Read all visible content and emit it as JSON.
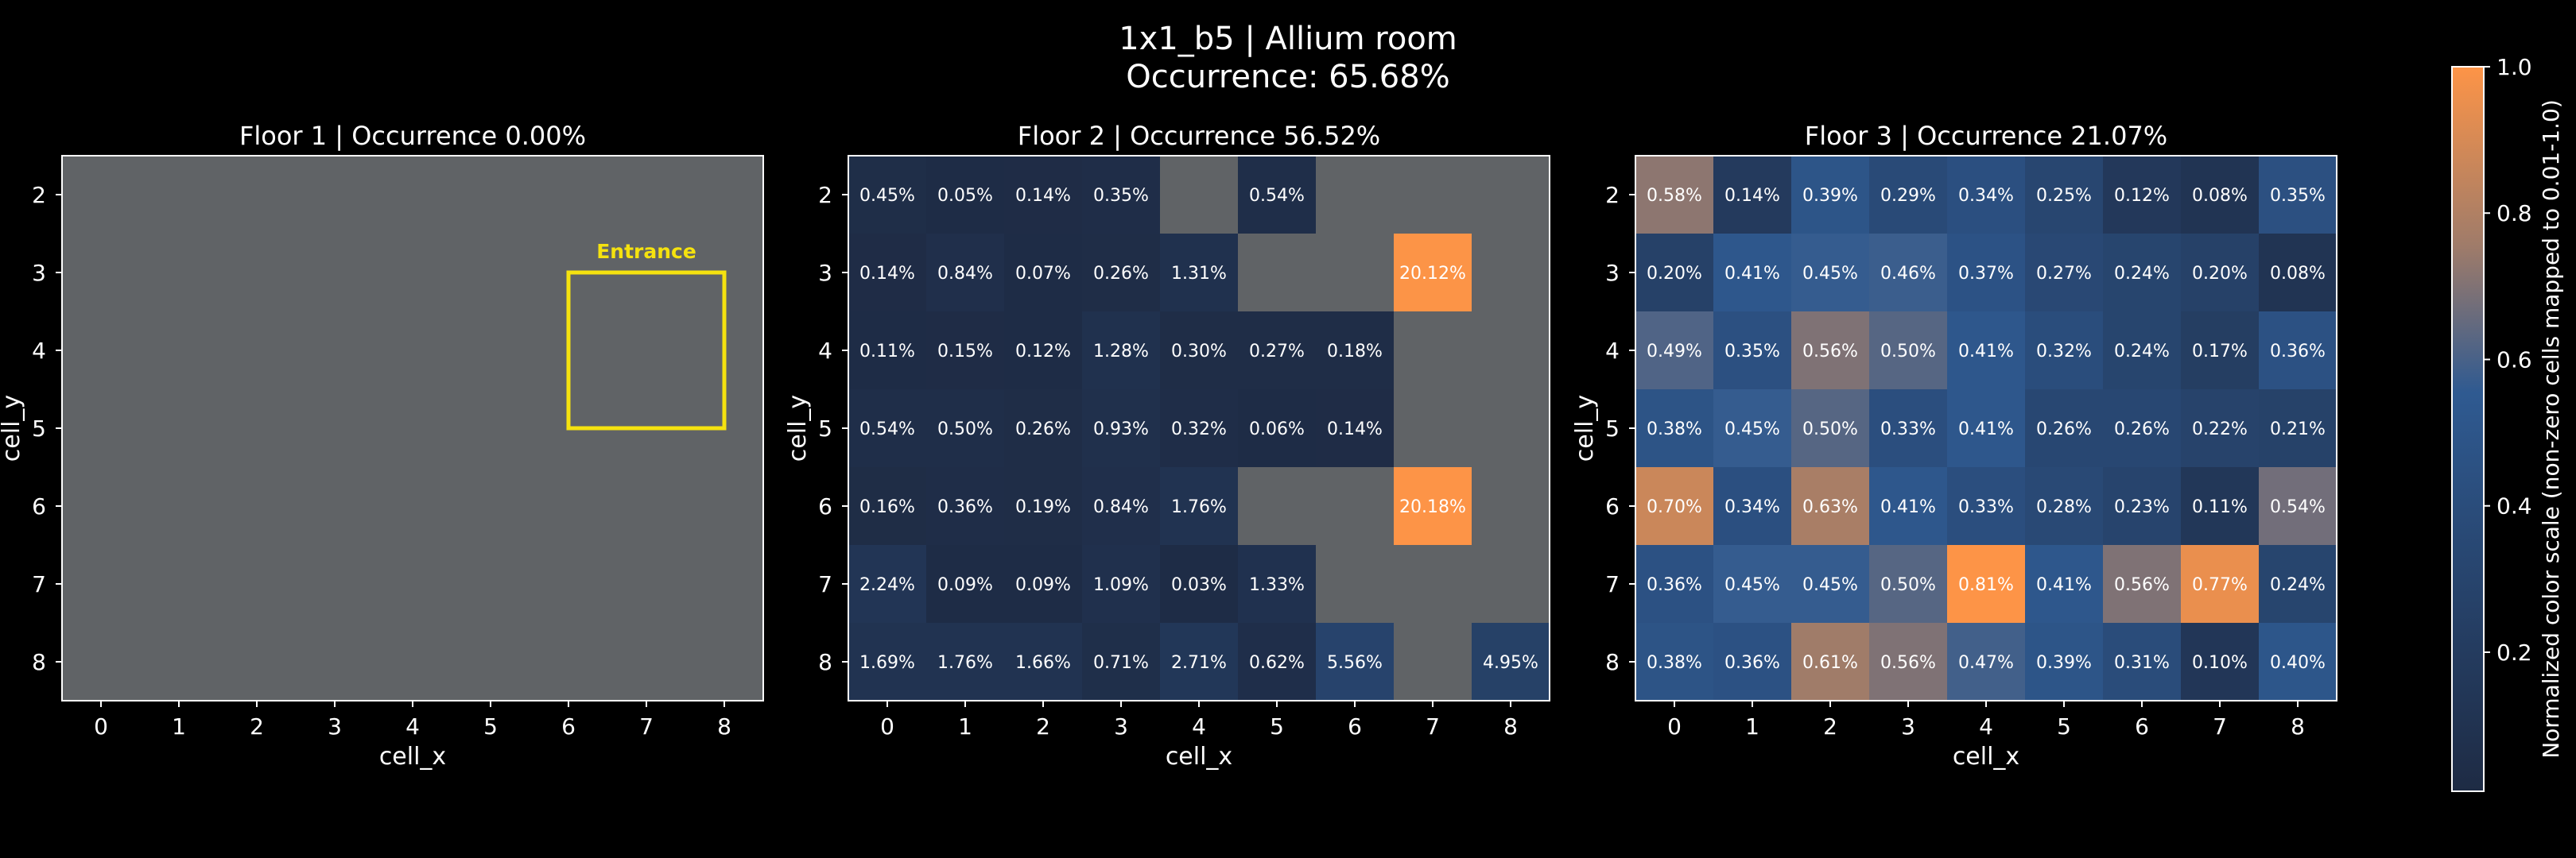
{
  "title": "1x1_b5 | Allium room",
  "subtitle": "Occurrence: 65.68%",
  "entrance_label": "Entrance",
  "colors": {
    "background": "#000000",
    "empty_cell": "#606366",
    "frame": "#ffffff",
    "text": "#ffffff",
    "entrance": "#f5e20f",
    "scale_low": "#1e2b44",
    "scale_mid": "#2f5a91",
    "scale_high": "#fd9447"
  },
  "colorbar": {
    "label": "Normalized color scale (non-zero cells mapped to 0.01-1.0)",
    "range": [
      0.01,
      1.0
    ],
    "ticks": [
      "0.2",
      "0.4",
      "0.6",
      "0.8",
      "1.0"
    ],
    "tick_values": [
      0.2,
      0.4,
      0.6,
      0.8,
      1.0
    ]
  },
  "chart_data": [
    {
      "type": "heatmap",
      "title": "Floor 1 | Occurrence 0.00%",
      "xlabel": "cell_x",
      "ylabel": "cell_y",
      "x_ticks": [
        "0",
        "1",
        "2",
        "3",
        "4",
        "5",
        "6",
        "7",
        "8"
      ],
      "y_ticks": [
        "2",
        "3",
        "4",
        "5",
        "6",
        "7",
        "8"
      ],
      "entrance": {
        "x_range": [
          7,
          8
        ],
        "y_range": [
          4,
          5
        ]
      },
      "cells": []
    },
    {
      "type": "heatmap",
      "title": "Floor 2 | Occurrence 56.52%",
      "xlabel": "cell_x",
      "ylabel": "cell_y",
      "x_ticks": [
        "0",
        "1",
        "2",
        "3",
        "4",
        "5",
        "6",
        "7",
        "8"
      ],
      "y_ticks": [
        "2",
        "3",
        "4",
        "5",
        "6",
        "7",
        "8"
      ],
      "cells": [
        {
          "x": 0,
          "y": 2,
          "label": "0.45%",
          "v": 0.45
        },
        {
          "x": 1,
          "y": 2,
          "label": "0.05%",
          "v": 0.05
        },
        {
          "x": 2,
          "y": 2,
          "label": "0.14%",
          "v": 0.14
        },
        {
          "x": 3,
          "y": 2,
          "label": "0.35%",
          "v": 0.35
        },
        {
          "x": 5,
          "y": 2,
          "label": "0.54%",
          "v": 0.54
        },
        {
          "x": 0,
          "y": 3,
          "label": "0.14%",
          "v": 0.14
        },
        {
          "x": 1,
          "y": 3,
          "label": "0.84%",
          "v": 0.84
        },
        {
          "x": 2,
          "y": 3,
          "label": "0.07%",
          "v": 0.07
        },
        {
          "x": 3,
          "y": 3,
          "label": "0.26%",
          "v": 0.26
        },
        {
          "x": 4,
          "y": 3,
          "label": "1.31%",
          "v": 1.31
        },
        {
          "x": 7,
          "y": 3,
          "label": "20.12%",
          "v": 20.12
        },
        {
          "x": 0,
          "y": 4,
          "label": "0.11%",
          "v": 0.11
        },
        {
          "x": 1,
          "y": 4,
          "label": "0.15%",
          "v": 0.15
        },
        {
          "x": 2,
          "y": 4,
          "label": "0.12%",
          "v": 0.12
        },
        {
          "x": 3,
          "y": 4,
          "label": "1.28%",
          "v": 1.28
        },
        {
          "x": 4,
          "y": 4,
          "label": "0.30%",
          "v": 0.3
        },
        {
          "x": 5,
          "y": 4,
          "label": "0.27%",
          "v": 0.27
        },
        {
          "x": 6,
          "y": 4,
          "label": "0.18%",
          "v": 0.18
        },
        {
          "x": 0,
          "y": 5,
          "label": "0.54%",
          "v": 0.54
        },
        {
          "x": 1,
          "y": 5,
          "label": "0.50%",
          "v": 0.5
        },
        {
          "x": 2,
          "y": 5,
          "label": "0.26%",
          "v": 0.26
        },
        {
          "x": 3,
          "y": 5,
          "label": "0.93%",
          "v": 0.93
        },
        {
          "x": 4,
          "y": 5,
          "label": "0.32%",
          "v": 0.32
        },
        {
          "x": 5,
          "y": 5,
          "label": "0.06%",
          "v": 0.06
        },
        {
          "x": 6,
          "y": 5,
          "label": "0.14%",
          "v": 0.14
        },
        {
          "x": 0,
          "y": 6,
          "label": "0.16%",
          "v": 0.16
        },
        {
          "x": 1,
          "y": 6,
          "label": "0.36%",
          "v": 0.36
        },
        {
          "x": 2,
          "y": 6,
          "label": "0.19%",
          "v": 0.19
        },
        {
          "x": 3,
          "y": 6,
          "label": "0.84%",
          "v": 0.84
        },
        {
          "x": 4,
          "y": 6,
          "label": "1.76%",
          "v": 1.76
        },
        {
          "x": 7,
          "y": 6,
          "label": "20.18%",
          "v": 20.18
        },
        {
          "x": 0,
          "y": 7,
          "label": "2.24%",
          "v": 2.24
        },
        {
          "x": 1,
          "y": 7,
          "label": "0.09%",
          "v": 0.09
        },
        {
          "x": 2,
          "y": 7,
          "label": "0.09%",
          "v": 0.09
        },
        {
          "x": 3,
          "y": 7,
          "label": "1.09%",
          "v": 1.09
        },
        {
          "x": 4,
          "y": 7,
          "label": "0.03%",
          "v": 0.03
        },
        {
          "x": 5,
          "y": 7,
          "label": "1.33%",
          "v": 1.33
        },
        {
          "x": 0,
          "y": 8,
          "label": "1.69%",
          "v": 1.69
        },
        {
          "x": 1,
          "y": 8,
          "label": "1.76%",
          "v": 1.76
        },
        {
          "x": 2,
          "y": 8,
          "label": "1.66%",
          "v": 1.66
        },
        {
          "x": 3,
          "y": 8,
          "label": "0.71%",
          "v": 0.71
        },
        {
          "x": 4,
          "y": 8,
          "label": "2.71%",
          "v": 2.71
        },
        {
          "x": 5,
          "y": 8,
          "label": "0.62%",
          "v": 0.62
        },
        {
          "x": 6,
          "y": 8,
          "label": "5.56%",
          "v": 5.56
        },
        {
          "x": 8,
          "y": 8,
          "label": "4.95%",
          "v": 4.95
        }
      ]
    },
    {
      "type": "heatmap",
      "title": "Floor 3 | Occurrence 21.07%",
      "xlabel": "cell_x",
      "ylabel": "cell_y",
      "x_ticks": [
        "0",
        "1",
        "2",
        "3",
        "4",
        "5",
        "6",
        "7",
        "8"
      ],
      "y_ticks": [
        "2",
        "3",
        "4",
        "5",
        "6",
        "7",
        "8"
      ],
      "cells": [
        {
          "x": 0,
          "y": 2,
          "label": "0.58%",
          "v": 0.58
        },
        {
          "x": 1,
          "y": 2,
          "label": "0.14%",
          "v": 0.14
        },
        {
          "x": 2,
          "y": 2,
          "label": "0.39%",
          "v": 0.39
        },
        {
          "x": 3,
          "y": 2,
          "label": "0.29%",
          "v": 0.29
        },
        {
          "x": 4,
          "y": 2,
          "label": "0.34%",
          "v": 0.34
        },
        {
          "x": 5,
          "y": 2,
          "label": "0.25%",
          "v": 0.25
        },
        {
          "x": 6,
          "y": 2,
          "label": "0.12%",
          "v": 0.12
        },
        {
          "x": 7,
          "y": 2,
          "label": "0.08%",
          "v": 0.08
        },
        {
          "x": 8,
          "y": 2,
          "label": "0.35%",
          "v": 0.35
        },
        {
          "x": 0,
          "y": 3,
          "label": "0.20%",
          "v": 0.2
        },
        {
          "x": 1,
          "y": 3,
          "label": "0.41%",
          "v": 0.41
        },
        {
          "x": 2,
          "y": 3,
          "label": "0.45%",
          "v": 0.45
        },
        {
          "x": 3,
          "y": 3,
          "label": "0.46%",
          "v": 0.46
        },
        {
          "x": 4,
          "y": 3,
          "label": "0.37%",
          "v": 0.37
        },
        {
          "x": 5,
          "y": 3,
          "label": "0.27%",
          "v": 0.27
        },
        {
          "x": 6,
          "y": 3,
          "label": "0.24%",
          "v": 0.24
        },
        {
          "x": 7,
          "y": 3,
          "label": "0.20%",
          "v": 0.2
        },
        {
          "x": 8,
          "y": 3,
          "label": "0.08%",
          "v": 0.08
        },
        {
          "x": 0,
          "y": 4,
          "label": "0.49%",
          "v": 0.49
        },
        {
          "x": 1,
          "y": 4,
          "label": "0.35%",
          "v": 0.35
        },
        {
          "x": 2,
          "y": 4,
          "label": "0.56%",
          "v": 0.56
        },
        {
          "x": 3,
          "y": 4,
          "label": "0.50%",
          "v": 0.5
        },
        {
          "x": 4,
          "y": 4,
          "label": "0.41%",
          "v": 0.41
        },
        {
          "x": 5,
          "y": 4,
          "label": "0.32%",
          "v": 0.32
        },
        {
          "x": 6,
          "y": 4,
          "label": "0.24%",
          "v": 0.24
        },
        {
          "x": 7,
          "y": 4,
          "label": "0.17%",
          "v": 0.17
        },
        {
          "x": 8,
          "y": 4,
          "label": "0.36%",
          "v": 0.36
        },
        {
          "x": 0,
          "y": 5,
          "label": "0.38%",
          "v": 0.38
        },
        {
          "x": 1,
          "y": 5,
          "label": "0.45%",
          "v": 0.45
        },
        {
          "x": 2,
          "y": 5,
          "label": "0.50%",
          "v": 0.5
        },
        {
          "x": 3,
          "y": 5,
          "label": "0.33%",
          "v": 0.33
        },
        {
          "x": 4,
          "y": 5,
          "label": "0.41%",
          "v": 0.41
        },
        {
          "x": 5,
          "y": 5,
          "label": "0.26%",
          "v": 0.26
        },
        {
          "x": 6,
          "y": 5,
          "label": "0.26%",
          "v": 0.26
        },
        {
          "x": 7,
          "y": 5,
          "label": "0.22%",
          "v": 0.22
        },
        {
          "x": 8,
          "y": 5,
          "label": "0.21%",
          "v": 0.21
        },
        {
          "x": 0,
          "y": 6,
          "label": "0.70%",
          "v": 0.7
        },
        {
          "x": 1,
          "y": 6,
          "label": "0.34%",
          "v": 0.34
        },
        {
          "x": 2,
          "y": 6,
          "label": "0.63%",
          "v": 0.63
        },
        {
          "x": 3,
          "y": 6,
          "label": "0.41%",
          "v": 0.41
        },
        {
          "x": 4,
          "y": 6,
          "label": "0.33%",
          "v": 0.33
        },
        {
          "x": 5,
          "y": 6,
          "label": "0.28%",
          "v": 0.28
        },
        {
          "x": 6,
          "y": 6,
          "label": "0.23%",
          "v": 0.23
        },
        {
          "x": 7,
          "y": 6,
          "label": "0.11%",
          "v": 0.11
        },
        {
          "x": 8,
          "y": 6,
          "label": "0.54%",
          "v": 0.54
        },
        {
          "x": 0,
          "y": 7,
          "label": "0.36%",
          "v": 0.36
        },
        {
          "x": 1,
          "y": 7,
          "label": "0.45%",
          "v": 0.45
        },
        {
          "x": 2,
          "y": 7,
          "label": "0.45%",
          "v": 0.45
        },
        {
          "x": 3,
          "y": 7,
          "label": "0.50%",
          "v": 0.5
        },
        {
          "x": 4,
          "y": 7,
          "label": "0.81%",
          "v": 0.81
        },
        {
          "x": 5,
          "y": 7,
          "label": "0.41%",
          "v": 0.41
        },
        {
          "x": 6,
          "y": 7,
          "label": "0.56%",
          "v": 0.56
        },
        {
          "x": 7,
          "y": 7,
          "label": "0.77%",
          "v": 0.77
        },
        {
          "x": 8,
          "y": 7,
          "label": "0.24%",
          "v": 0.24
        },
        {
          "x": 0,
          "y": 8,
          "label": "0.38%",
          "v": 0.38
        },
        {
          "x": 1,
          "y": 8,
          "label": "0.36%",
          "v": 0.36
        },
        {
          "x": 2,
          "y": 8,
          "label": "0.61%",
          "v": 0.61
        },
        {
          "x": 3,
          "y": 8,
          "label": "0.56%",
          "v": 0.56
        },
        {
          "x": 4,
          "y": 8,
          "label": "0.47%",
          "v": 0.47
        },
        {
          "x": 5,
          "y": 8,
          "label": "0.39%",
          "v": 0.39
        },
        {
          "x": 6,
          "y": 8,
          "label": "0.31%",
          "v": 0.31
        },
        {
          "x": 7,
          "y": 8,
          "label": "0.10%",
          "v": 0.1
        },
        {
          "x": 8,
          "y": 8,
          "label": "0.40%",
          "v": 0.4
        }
      ]
    }
  ]
}
